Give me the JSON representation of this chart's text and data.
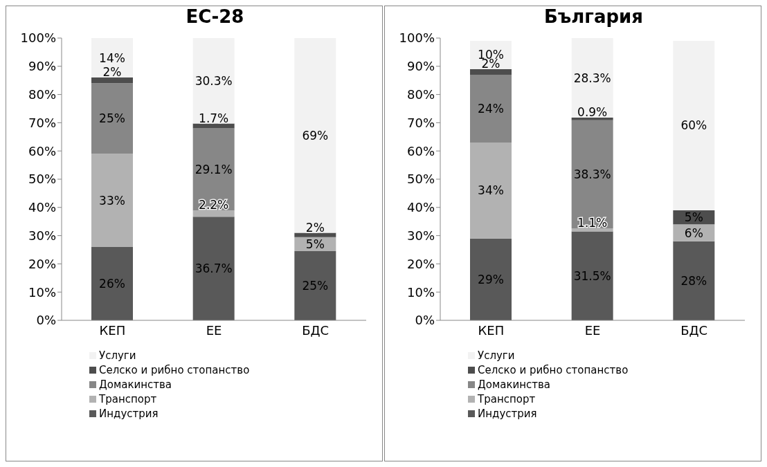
{
  "chart_data": [
    {
      "type": "bar",
      "title": "ЕС-28",
      "categories": [
        "КЕП",
        "ЕЕ",
        "БДС"
      ],
      "stacked": true,
      "legend": "bottom",
      "grid": false,
      "ylim": [
        0,
        100
      ],
      "yticks": [
        {
          "value": 0,
          "label": "0%"
        },
        {
          "value": 10,
          "label": "10%"
        },
        {
          "value": 20,
          "label": "20%"
        },
        {
          "value": 30,
          "label": "30%"
        },
        {
          "value": 40,
          "label": "40%"
        },
        {
          "value": 50,
          "label": "50%"
        },
        {
          "value": 60,
          "label": "60%"
        },
        {
          "value": 70,
          "label": "70%"
        },
        {
          "value": 80,
          "label": "80%"
        },
        {
          "value": 90,
          "label": "90%"
        },
        {
          "value": 100,
          "label": "100%"
        }
      ],
      "series": [
        {
          "name": "Индустрия",
          "color": "#595959",
          "values": [
            26,
            36.7,
            24.5
          ],
          "value_labels": [
            "26%",
            "36.7%",
            "25%"
          ]
        },
        {
          "name": "Транспорт",
          "color": "#b2b2b2",
          "values": [
            33,
            2.2,
            5
          ],
          "value_labels": [
            "33%",
            "2.2%",
            "5%"
          ]
        },
        {
          "name": "Домакинства",
          "color": "#878787",
          "values": [
            25,
            29.1,
            null
          ],
          "value_labels": [
            "25%",
            "29.1%",
            null
          ]
        },
        {
          "name": "Селско и рибно стопанство",
          "color": "#4d4d4d",
          "values": [
            2,
            1.7,
            1.5
          ],
          "value_labels": [
            "2%",
            "1.7%",
            "2%"
          ]
        },
        {
          "name": "Услуги",
          "color": "#f2f2f2",
          "values": [
            14,
            30.3,
            69
          ],
          "value_labels": [
            "14%",
            "30.3%",
            "69%"
          ]
        }
      ]
    },
    {
      "type": "bar",
      "title": "България",
      "categories": [
        "КЕП",
        "ЕЕ",
        "БДС"
      ],
      "stacked": true,
      "legend": "bottom",
      "grid": false,
      "ylim": [
        0,
        100
      ],
      "yticks": [
        {
          "value": 0,
          "label": "0%"
        },
        {
          "value": 10,
          "label": "10%"
        },
        {
          "value": 20,
          "label": "20%"
        },
        {
          "value": 30,
          "label": "30%"
        },
        {
          "value": 40,
          "label": "40%"
        },
        {
          "value": 50,
          "label": "50%"
        },
        {
          "value": 60,
          "label": "60%"
        },
        {
          "value": 70,
          "label": "70%"
        },
        {
          "value": 80,
          "label": "80%"
        },
        {
          "value": 90,
          "label": "90%"
        },
        {
          "value": 100,
          "label": "100%"
        }
      ],
      "series": [
        {
          "name": "Индустрия",
          "color": "#595959",
          "values": [
            29,
            31.5,
            28
          ],
          "value_labels": [
            "29%",
            "31.5%",
            "28%"
          ]
        },
        {
          "name": "Транспорт",
          "color": "#b2b2b2",
          "values": [
            34,
            1.1,
            6
          ],
          "value_labels": [
            "34%",
            "1.1%",
            "6%"
          ]
        },
        {
          "name": "Домакинства",
          "color": "#878787",
          "values": [
            24,
            38.3,
            null
          ],
          "value_labels": [
            "24%",
            "38.3%",
            null
          ]
        },
        {
          "name": "Селско и рибно стопанство",
          "color": "#4d4d4d",
          "values": [
            2,
            0.9,
            5
          ],
          "value_labels": [
            "2%",
            "0.9%",
            "5%"
          ]
        },
        {
          "name": "Услуги",
          "color": "#f2f2f2",
          "values": [
            10,
            28.3,
            60
          ],
          "value_labels": [
            "10%",
            "28.3%",
            "60%"
          ]
        }
      ]
    }
  ]
}
